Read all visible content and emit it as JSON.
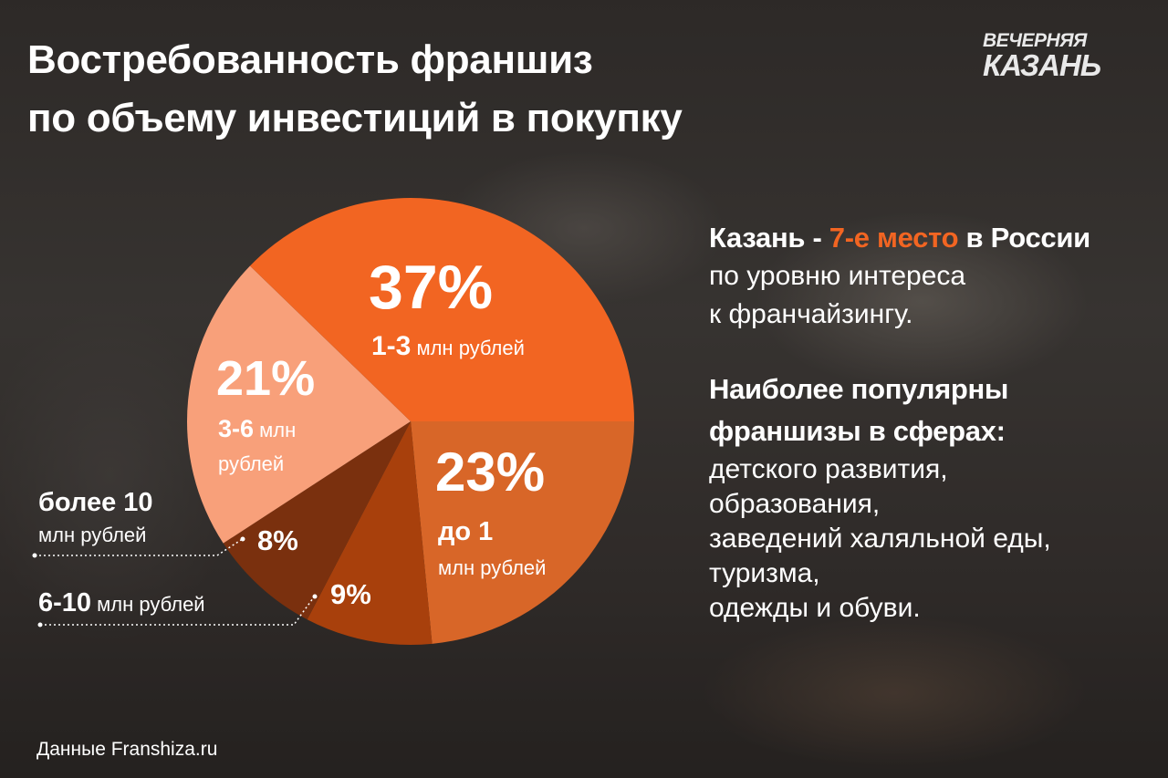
{
  "title_lines": [
    "Востребованность франшиз",
    "по объему инвестиций в покупку"
  ],
  "logo": {
    "line1": "ВЕЧЕРНЯЯ",
    "line2": "КАЗАНЬ"
  },
  "colors": {
    "accent": "#f26522",
    "slice_1_3": "#f26522",
    "slice_under_1": "#d86628",
    "slice_6_10": "#a8400c",
    "slice_over_10": "#7a300e",
    "slice_3_6": "#f8a07a"
  },
  "chart_data": {
    "type": "pie",
    "slices": [
      {
        "key": "s37",
        "value": 37,
        "label": "37%",
        "category_bold": "1-3",
        "category_rest": " млн рублей",
        "color": "#f26522"
      },
      {
        "key": "s23",
        "value": 23,
        "label": "23%",
        "category_line1": "до 1",
        "category_line2": "млн рублей",
        "color": "#d86628"
      },
      {
        "key": "s9",
        "value": 9,
        "label": "9%",
        "category_bold": "6-10",
        "category_rest": " млн рублей",
        "color": "#a8400c"
      },
      {
        "key": "s8",
        "value": 8,
        "label": "8%",
        "category_line1": "более 10",
        "category_line2": "млн рублей",
        "color": "#7a300e"
      },
      {
        "key": "s21",
        "value": 21,
        "label": "21%",
        "category_line1a": "3-6",
        "category_line1b": " млн",
        "category_line2": "рублей",
        "color": "#f8a07a"
      }
    ]
  },
  "info": {
    "headline_pre": "Казань - ",
    "headline_accent": "7-е место",
    "headline_post": " в России",
    "sub_lines": [
      "по уровню интереса",
      "к франчайзингу."
    ],
    "popular_title_lines": [
      "Наиболее популярны",
      "франшизы в сферах:"
    ],
    "spheres": [
      "детского развития,",
      "образования,",
      "заведений халяльной еды,",
      "туризма,",
      "одежды и обуви."
    ]
  },
  "source": "Данные Franshiza.ru"
}
